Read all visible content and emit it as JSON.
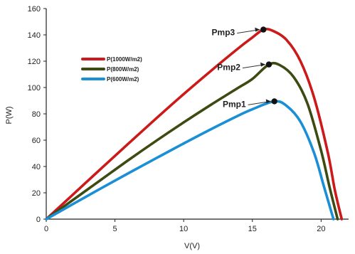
{
  "chart_data": {
    "type": "line",
    "title": "",
    "xlabel": "V(V)",
    "ylabel": "P(W)",
    "xlim": [
      0,
      22
    ],
    "ylim": [
      0,
      160
    ],
    "x_ticks": [
      0,
      5,
      10,
      15,
      20
    ],
    "y_ticks": [
      0,
      20,
      40,
      60,
      80,
      100,
      120,
      140,
      160
    ],
    "grid": false,
    "legend_position": "top-left",
    "series": [
      {
        "name": "P(1000W/m2)",
        "color": "#cc1a1a",
        "x": [
          0,
          2,
          4,
          6,
          8,
          10,
          12,
          14,
          15,
          15.8,
          16.5,
          17.5,
          18.5,
          19.5,
          20.5,
          21.0,
          21.5
        ],
        "y": [
          0,
          19.2,
          38.5,
          57.6,
          76.5,
          95,
          112.8,
          130,
          138,
          144,
          143,
          136,
          120,
          92,
          50,
          22,
          0
        ]
      },
      {
        "name": "P(800W/m2)",
        "color": "#3d4a12",
        "x": [
          0,
          2,
          4,
          6,
          8,
          10,
          12,
          14,
          15,
          16.2,
          17.0,
          18.0,
          19.0,
          20.0,
          20.6,
          21.2
        ],
        "y": [
          0,
          15,
          30,
          45,
          59.5,
          73.5,
          87,
          100,
          106.5,
          117.5,
          117,
          108,
          88,
          52,
          25,
          0
        ]
      },
      {
        "name": "P(600W/m2)",
        "color": "#1a8fd6",
        "x": [
          0,
          2,
          4,
          6,
          8,
          10,
          12,
          14,
          15,
          16.6,
          17.5,
          18.5,
          19.5,
          20.2,
          20.9
        ],
        "y": [
          0,
          11.8,
          23.5,
          35,
          46.3,
          57.5,
          68.4,
          78.8,
          83.5,
          89.5,
          86,
          74,
          50,
          25,
          0
        ]
      }
    ],
    "points": [
      {
        "label": "Pmp3",
        "x": 15.8,
        "y": 144,
        "series": "P(1000W/m2)"
      },
      {
        "label": "Pmp2",
        "x": 16.2,
        "y": 117.5,
        "series": "P(800W/m2)"
      },
      {
        "label": "Pmp1",
        "x": 16.6,
        "y": 89.5,
        "series": "P(600W/m2)"
      }
    ]
  }
}
